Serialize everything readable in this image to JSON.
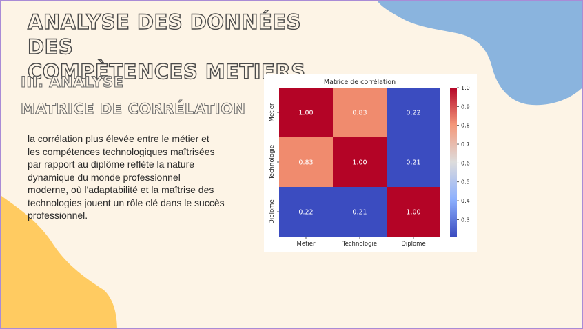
{
  "slide": {
    "title_line1": "ANALYSE DES DONNÉES DES",
    "title_line2": "COMPÈTENCES METIERS",
    "section": "III. ANALYSE",
    "subsection": "MATRICE DE CORRÉLATION",
    "paragraph_lines": [
      "la corrélation plus élevée entre le métier et",
      "les compétences technologiques maîtrisées",
      "par rapport au diplôme reflète la nature",
      "dynamique du monde professionnel",
      "moderne, où l'adaptabilité et la maîtrise des",
      "technologies jouent un rôle clé dans le succès",
      "professionnel."
    ],
    "colors": {
      "background": "#fdf4e6",
      "blue_blob": "#8ab4de",
      "yellow_blob": "#ffcb61",
      "frame": "#a98bd6"
    }
  },
  "chart_data": {
    "type": "heatmap",
    "title": "Matrice de corrélation",
    "x_labels": [
      "Metier",
      "Technologie",
      "Diplome"
    ],
    "y_labels": [
      "Metier",
      "Technologie",
      "Diplome"
    ],
    "values": [
      [
        1.0,
        0.83,
        0.22
      ],
      [
        0.83,
        1.0,
        0.21
      ],
      [
        0.22,
        0.21,
        1.0
      ]
    ],
    "cell_labels": [
      [
        "1.00",
        "0.83",
        "0.22"
      ],
      [
        "0.83",
        "1.00",
        "0.21"
      ],
      [
        "0.22",
        "0.21",
        "1.00"
      ]
    ],
    "colormap": "coolwarm",
    "colorbar_range": [
      0.21,
      1.0
    ],
    "colorbar_ticks": [
      "1.0",
      "0.9",
      "0.8",
      "0.7",
      "0.6",
      "0.5",
      "0.4",
      "0.3"
    ],
    "colorbar_tick_values": [
      1.0,
      0.9,
      0.8,
      0.7,
      0.6,
      0.5,
      0.4,
      0.3
    ],
    "cell_colors": [
      [
        "#b40426",
        "#f08b6e",
        "#3b4cc0"
      ],
      [
        "#f08b6e",
        "#b40426",
        "#3b4cc0"
      ],
      [
        "#3b4cc0",
        "#3b4cc0",
        "#b40426"
      ]
    ],
    "text_color": "#ffffff"
  }
}
